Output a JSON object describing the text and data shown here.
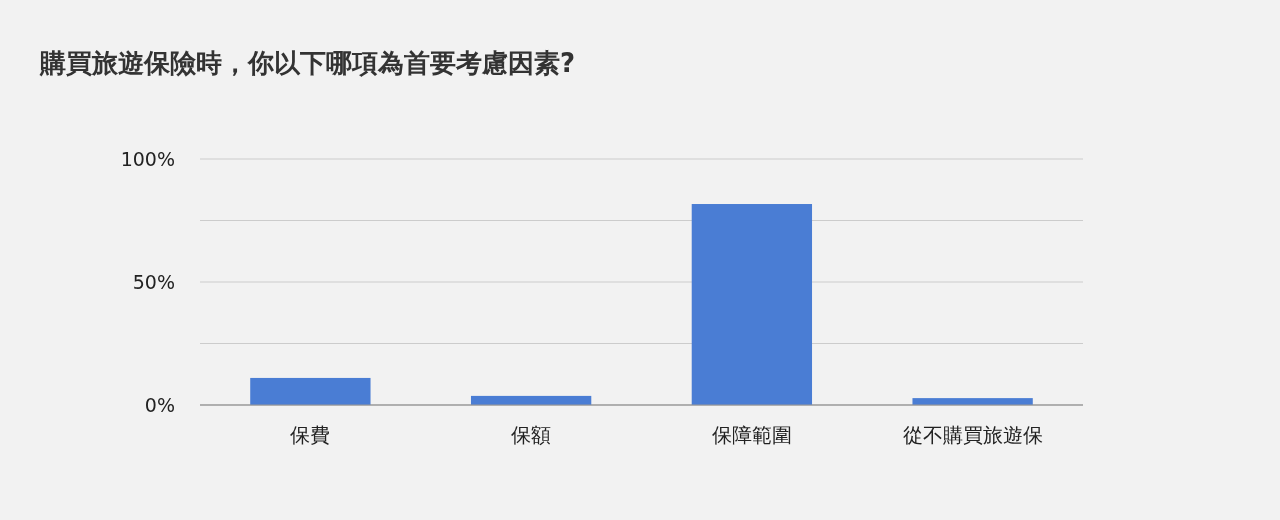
{
  "chart_data": {
    "type": "bar",
    "title": "購買旅遊保險時，你以下哪項為首要考慮因素?",
    "categories": [
      "保費",
      "保額",
      "保障範圍",
      "從不購買旅遊保"
    ],
    "values": [
      11,
      3.7,
      81.7,
      2.8
    ],
    "color": "#4a7dd4",
    "ylim": [
      0,
      100
    ],
    "yticks": [
      {
        "value": 0,
        "label": "0%"
      },
      {
        "value": 25,
        "label": null
      },
      {
        "value": 50,
        "label": "50%"
      },
      {
        "value": 75,
        "label": null
      },
      {
        "value": 100,
        "label": "100%"
      }
    ],
    "grid": "y"
  }
}
